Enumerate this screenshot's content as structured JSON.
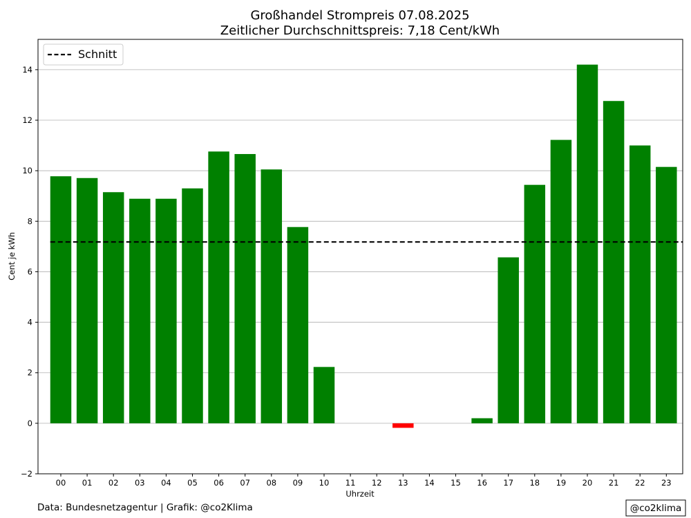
{
  "chart_data": {
    "type": "bar",
    "title": "Großhandel Strompreis 07.08.2025",
    "subtitle": "Zeitlicher Durchschnittspreis: 7,18 Cent/kWh",
    "xlabel": "Uhrzeit",
    "ylabel": "Cent je kWh",
    "ylim": [
      -2,
      15.2
    ],
    "yticks": [
      -2,
      0,
      2,
      4,
      6,
      8,
      10,
      12,
      14
    ],
    "ytick_labels": [
      "−2",
      "0",
      "2",
      "4",
      "6",
      "8",
      "10",
      "12",
      "14"
    ],
    "categories": [
      "00",
      "01",
      "02",
      "03",
      "04",
      "05",
      "06",
      "07",
      "08",
      "09",
      "10",
      "11",
      "12",
      "13",
      "14",
      "15",
      "16",
      "17",
      "18",
      "19",
      "20",
      "21",
      "22",
      "23"
    ],
    "values": [
      9.78,
      9.71,
      9.15,
      8.89,
      8.89,
      9.3,
      10.76,
      10.66,
      10.05,
      7.77,
      2.23,
      0,
      0,
      -0.18,
      0,
      0,
      0.2,
      6.57,
      9.44,
      11.22,
      14.2,
      12.76,
      11.0,
      10.15
    ],
    "average": 7.18,
    "legend": {
      "label": "Schnitt",
      "position": "upper-left"
    },
    "grid": "y",
    "colors": {
      "positive": "#008000",
      "negative": "#ff0000",
      "average_line": "#000000"
    }
  },
  "footer": {
    "source": "Data: Bundesnetzagentur | Grafik: @co2Klima",
    "badge": "@co2klima"
  }
}
